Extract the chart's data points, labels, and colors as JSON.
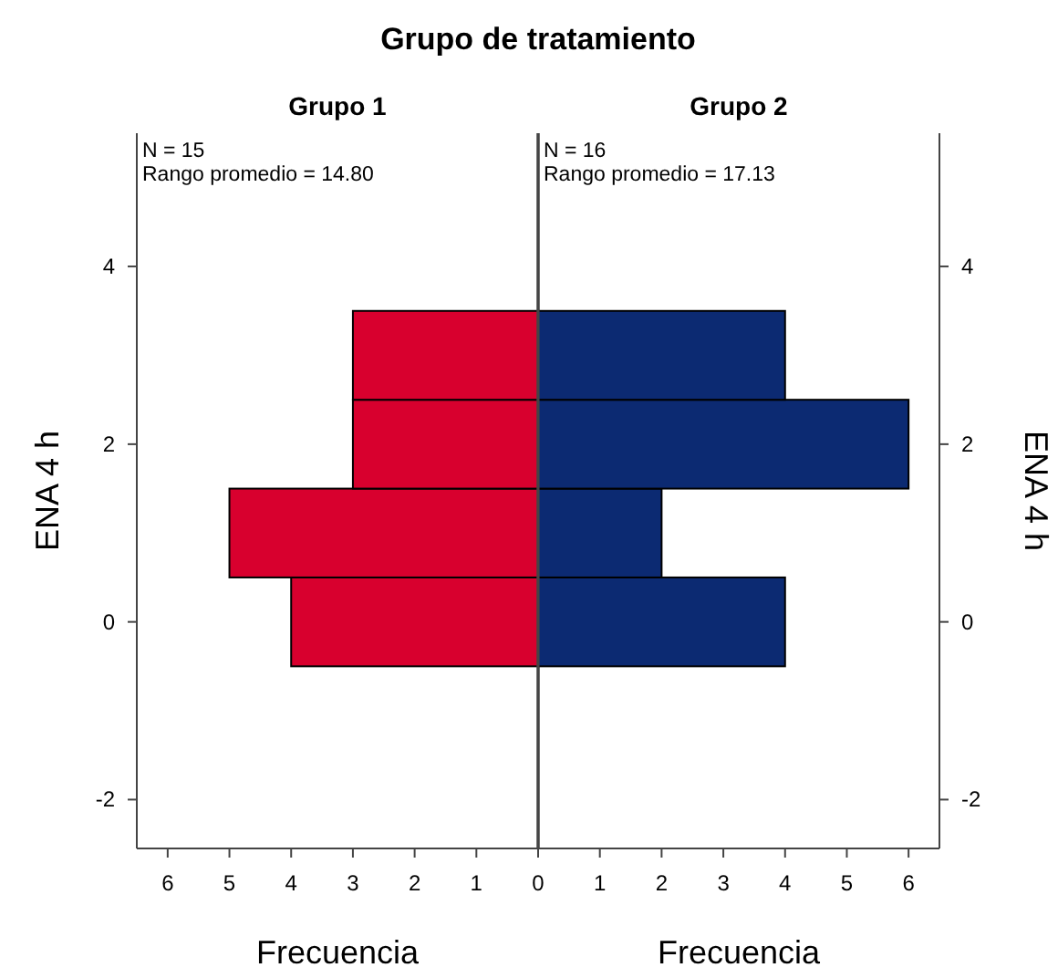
{
  "chart_data": [
    {
      "type": "histogram",
      "orientation": "horizontal",
      "title": "Grupo 1",
      "xlabel": "Frecuencia",
      "ylabel": "ENA 4 h",
      "bins": [
        -0.5,
        0.5,
        1.5,
        2.5,
        3.5
      ],
      "values": [
        4,
        5,
        3,
        3
      ],
      "color": "#d8002e",
      "xlim": [
        6.5,
        0
      ],
      "xticks": [
        6,
        5,
        4,
        3,
        2,
        1,
        {
          "value": 0,
          "label": null
        }
      ],
      "ylim": [
        -2.55,
        5.5
      ],
      "yticks": [
        -2,
        0,
        2,
        4
      ],
      "grid": false,
      "annotations": [
        "Grupo de tratamiento",
        "N = 15",
        "Rango promedio = 14.80"
      ]
    },
    {
      "type": "histogram",
      "orientation": "horizontal",
      "title": "Grupo 2",
      "xlabel": "Frecuencia",
      "ylabel": "ENA 4 h",
      "bins": [
        -0.5,
        0.5,
        1.5,
        2.5,
        3.5
      ],
      "values": [
        4,
        2,
        6,
        4
      ],
      "color": "#0c2a72",
      "xlim": [
        0,
        6.5
      ],
      "xticks": [
        0,
        1,
        2,
        3,
        4,
        5,
        6
      ],
      "ylim": [
        -2.55,
        5.5
      ],
      "yticks": [
        -2,
        0,
        2,
        4
      ],
      "grid": false,
      "annotations": [
        "N = 16",
        "Rango promedio = 17.13"
      ]
    }
  ]
}
